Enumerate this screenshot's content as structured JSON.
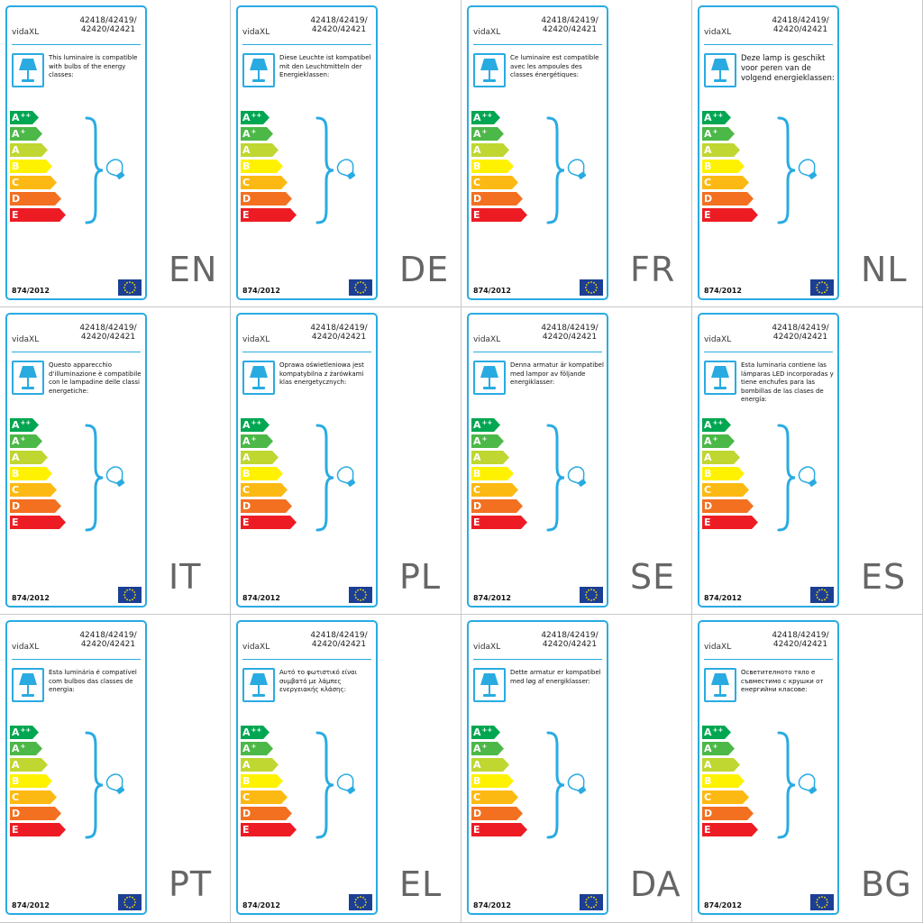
{
  "labels": [
    {
      "lang": "EN",
      "brand": "vidaXL",
      "codes": "42418/42419/\n42420/42421",
      "text": "This luminaire is compatible with bulbs of the energy classes:",
      "regulation": "874/2012"
    },
    {
      "lang": "DE",
      "brand": "vidaXL",
      "codes": "42418/42419/\n42420/42421",
      "text": "Diese Leuchte ist kompatibel mit den Leuchtmitteln der Energieklassen:",
      "regulation": "874/2012"
    },
    {
      "lang": "FR",
      "brand": "vidaXL",
      "codes": "42418/42419/\n42420/42421",
      "text": "Ce luminaire est compatible avec les ampoules des classes énergétiques:",
      "regulation": "874/2012"
    },
    {
      "lang": "NL",
      "brand": "vidaXL",
      "codes": "42418/42419/\n42420/42421",
      "text": "Deze lamp is geschikt voor peren van de volgend energieklassen:",
      "regulation": "874/2012"
    },
    {
      "lang": "IT",
      "brand": "vidaXL",
      "codes": "42418/42419/\n42420/42421",
      "text": "Questo apparecchio d'illuminazione è compatibile con le lampadine delle classi energetiche:",
      "regulation": "874/2012"
    },
    {
      "lang": "PL",
      "brand": "vidaXL",
      "codes": "42418/42419/\n42420/42421",
      "text": "Oprawa oświetleniowa jest kompatybilna z żarówkami klas energetycznych:",
      "regulation": "874/2012"
    },
    {
      "lang": "SE",
      "brand": "vidaXL",
      "codes": "42418/42419/\n42420/42421",
      "text": "Denna armatur är kompatibel med lampor av följande energiklasser:",
      "regulation": "874/2012"
    },
    {
      "lang": "ES",
      "brand": "vidaXL",
      "codes": "42418/42419/\n42420/42421",
      "text": "Esta luminaria contiene las lámparas LED incorporadas y tiene enchufes para las bombillas de las clases de energía:",
      "regulation": "874/2012"
    },
    {
      "lang": "PT",
      "brand": "vidaXL",
      "codes": "42418/42419/\n42420/42421",
      "text": "Esta luminária é compatível com bulbos das classes de energia:",
      "regulation": "874/2012"
    },
    {
      "lang": "EL",
      "brand": "vidaXL",
      "codes": "42418/42419/\n42420/42421",
      "text": "Αυτό το φωτιστικό είναι συμβατό με λάμπες ενεργειακής κλάσης:",
      "regulation": "874/2012"
    },
    {
      "lang": "DA",
      "brand": "vidaXL",
      "codes": "42418/42419/\n42420/42421",
      "text": "Dette armatur er kompatibel med løg af energiklasser:",
      "regulation": "874/2012"
    },
    {
      "lang": "BG",
      "brand": "vidaXL",
      "codes": "42418/42419/\n42420/42421",
      "text": "Осветителното тяло е съвместимо с крушки от енергийни класове:",
      "regulation": "874/2012"
    }
  ],
  "energy_classes": [
    {
      "letter": "A",
      "sup": "++",
      "color": "#00a651"
    },
    {
      "letter": "A",
      "sup": "+",
      "color": "#4cb848"
    },
    {
      "letter": "A",
      "sup": "",
      "color": "#bfd730"
    },
    {
      "letter": "B",
      "sup": "",
      "color": "#fff200"
    },
    {
      "letter": "C",
      "sup": "",
      "color": "#fdb913"
    },
    {
      "letter": "D",
      "sup": "",
      "color": "#f37021"
    },
    {
      "letter": "E",
      "sup": "",
      "color": "#ed1c24"
    }
  ],
  "colors": {
    "accent": "#29abe2",
    "eu_blue": "#1c3f94",
    "eu_star": "#ffdd00",
    "language_code": "#666666"
  },
  "icons": {
    "lamp": "table-lamp-icon",
    "bulb": "light-bulb-icon",
    "flag": "eu-flag-icon",
    "brace": "curly-brace"
  }
}
